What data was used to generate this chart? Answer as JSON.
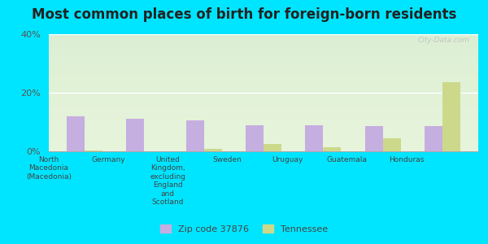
{
  "title": "Most common places of birth for foreign-born residents",
  "categories": [
    "North\nMacedonia\n(Macedonia)",
    "Germany",
    "United\nKingdom,\nexcluding\nEngland\nand\nScotland",
    "Sweden",
    "Uruguay",
    "Guatemala",
    "Honduras"
  ],
  "zip_values": [
    12.0,
    11.0,
    10.5,
    9.0,
    9.0,
    8.5,
    8.5
  ],
  "tn_values": [
    0.3,
    0.0,
    0.8,
    2.5,
    1.5,
    4.5,
    23.5
  ],
  "zip_color": "#c5aee0",
  "tn_color": "#ccd98a",
  "background_color": "#00e5ff",
  "plot_bg_top": "#e8f0d4",
  "plot_bg_bottom": "#f5fae8",
  "ylim": [
    0,
    40
  ],
  "yticks": [
    0,
    20,
    40
  ],
  "ytick_labels": [
    "0%",
    "20%",
    "40%"
  ],
  "legend_zip_label": "Zip code 37876",
  "legend_tn_label": "Tennessee",
  "watermark": "City-Data.com",
  "bar_width": 0.3,
  "title_fontsize": 12
}
